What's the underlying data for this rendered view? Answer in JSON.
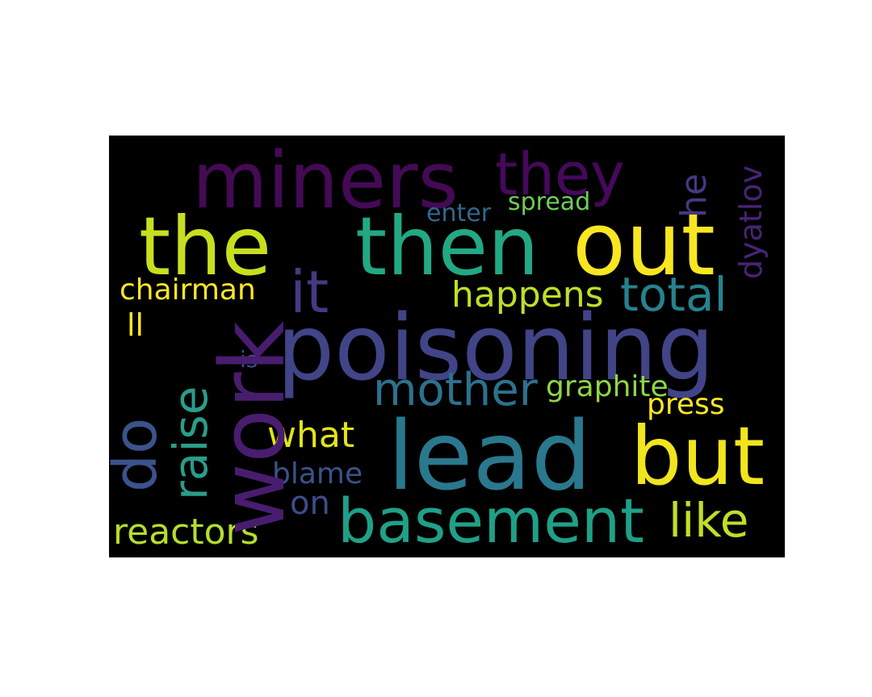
{
  "words": {
    "miners": {
      "text": "miners",
      "color": "#440a55"
    },
    "they": {
      "text": "they",
      "color": "#46085c"
    },
    "the": {
      "text": "the",
      "color": "#c8df1f"
    },
    "then": {
      "text": "then",
      "color": "#22a884"
    },
    "out": {
      "text": "out",
      "color": "#f8e621"
    },
    "it": {
      "text": "it",
      "color": "#443a83"
    },
    "poisoning": {
      "text": "poisoning",
      "color": "#414487"
    },
    "work": {
      "text": "work",
      "color": "#481d6f"
    },
    "lead": {
      "text": "lead",
      "color": "#2a788e"
    },
    "but": {
      "text": "but",
      "color": "#f1e51d"
    },
    "basement": {
      "text": "basement",
      "color": "#1fa088"
    },
    "mother": {
      "text": "mother",
      "color": "#2d718e"
    },
    "total": {
      "text": "total",
      "color": "#26828e"
    },
    "happens": {
      "text": "happens",
      "color": "#bddf26"
    },
    "chairman": {
      "text": "chairman",
      "color": "#fde725"
    },
    "ll": {
      "text": "ll",
      "color": "#fde725"
    },
    "do": {
      "text": "do",
      "color": "#3b528b"
    },
    "raise": {
      "text": "raise",
      "color": "#2a9d8a"
    },
    "what": {
      "text": "what",
      "color": "#e2e418"
    },
    "blame": {
      "text": "blame",
      "color": "#3b528b"
    },
    "on": {
      "text": "on",
      "color": "#3e4c8a"
    },
    "reactors": {
      "text": "reactors",
      "color": "#b5de2b"
    },
    "like": {
      "text": "like",
      "color": "#c0df25"
    },
    "graphite": {
      "text": "graphite",
      "color": "#8fd744"
    },
    "press": {
      "text": "press",
      "color": "#fde725"
    },
    "is": {
      "text": "is",
      "color": "#3b528b"
    },
    "enter": {
      "text": "enter",
      "color": "#31688e"
    },
    "spread": {
      "text": "spread",
      "color": "#6ece58"
    },
    "he": {
      "text": "he",
      "color": "#443983"
    },
    "dyatlov": {
      "text": "dyatlov",
      "color": "#482475"
    }
  }
}
